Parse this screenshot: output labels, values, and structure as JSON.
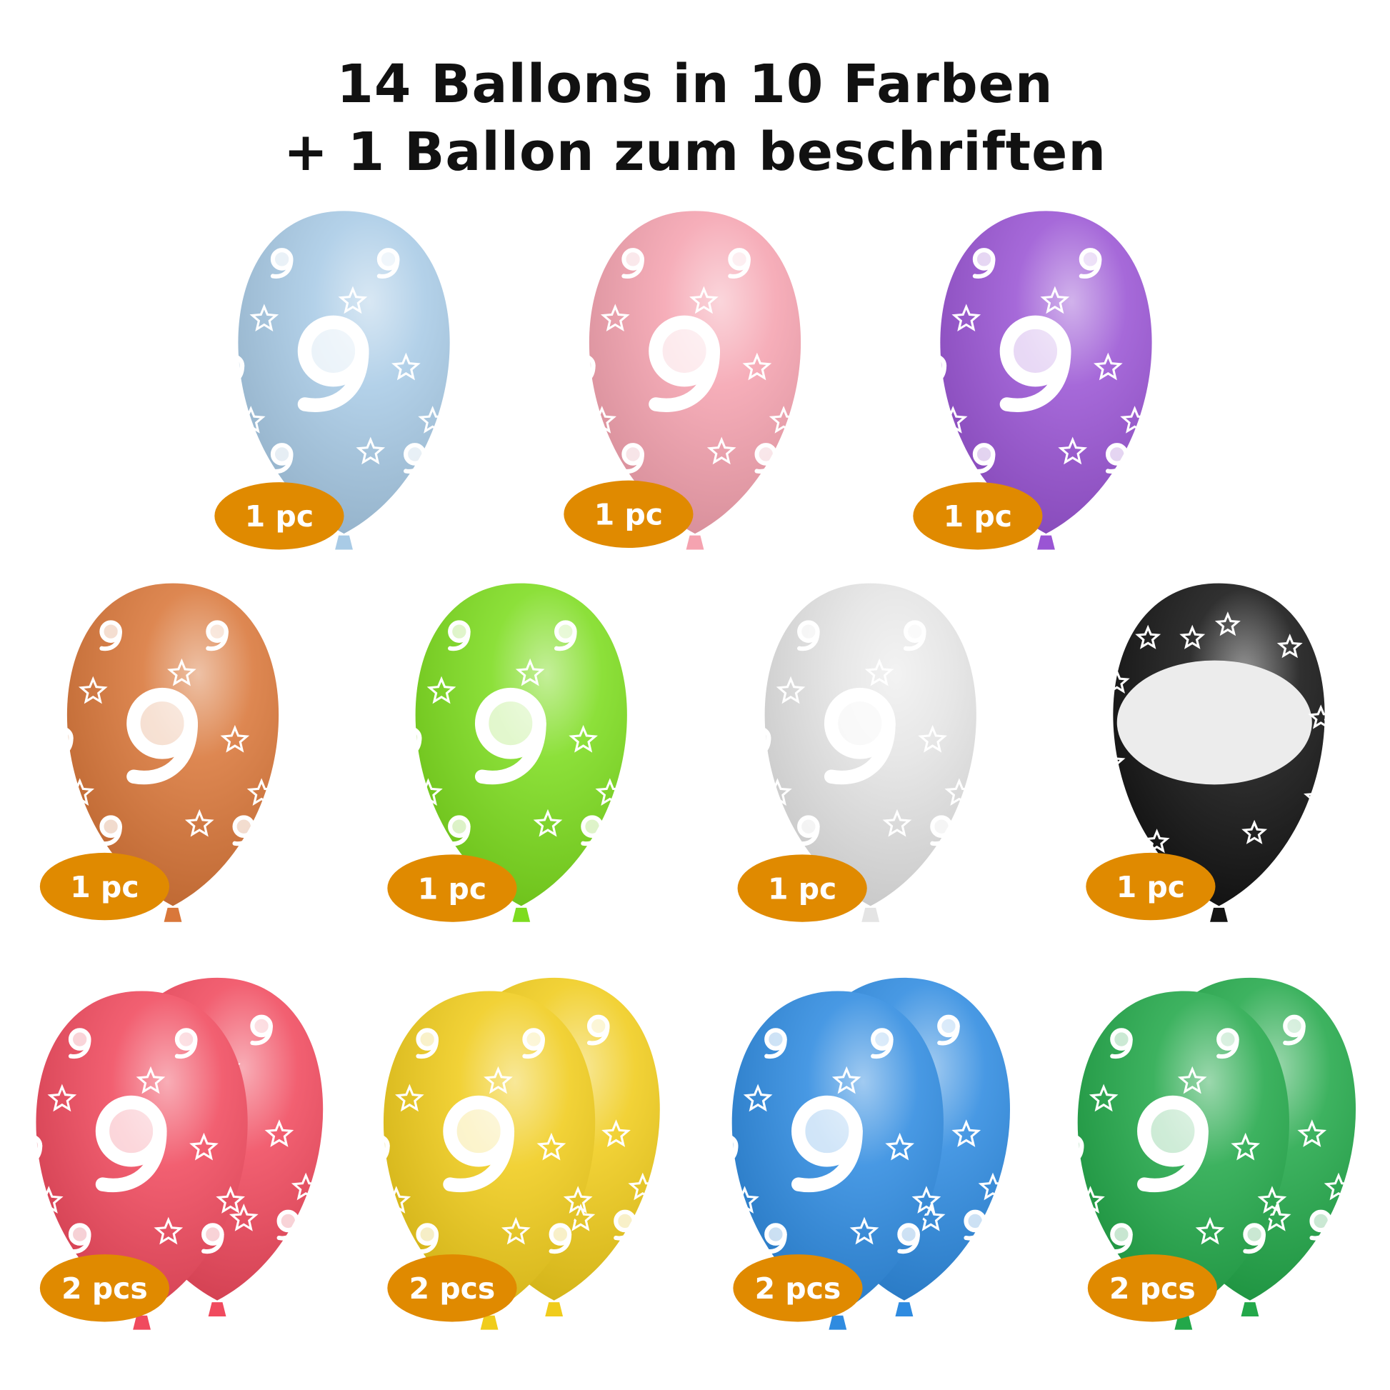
{
  "header": {
    "line1": "14 Ballons in 10 Farben",
    "line2": "+ 1 Ballon zum beschriften"
  },
  "badge_color": "#e08a00",
  "balloons": [
    {
      "color": "#a9cbe6",
      "label": "1 pc",
      "count": 1,
      "pattern": "9"
    },
    {
      "color": "#f5a3b0",
      "label": "1 pc",
      "count": 1,
      "pattern": "9"
    },
    {
      "color": "#9a55d4",
      "label": "1 pc",
      "count": 1,
      "pattern": "9"
    },
    {
      "color": "#d9773a",
      "label": "1 pc",
      "count": 1,
      "pattern": "9"
    },
    {
      "color": "#7ddc1f",
      "label": "1 pc",
      "count": 1,
      "pattern": "9"
    },
    {
      "color": "#e4e4e4",
      "label": "1 pc",
      "count": 1,
      "pattern": "9"
    },
    {
      "color": "#141414",
      "label": "1 pc",
      "count": 1,
      "pattern": "blank label"
    },
    {
      "color": "#f04a5e",
      "label": "2 pcs",
      "count": 2,
      "pattern": "9"
    },
    {
      "color": "#f0cc1c",
      "label": "2 pcs",
      "count": 2,
      "pattern": "9"
    },
    {
      "color": "#2f8be0",
      "label": "2 pcs",
      "count": 2,
      "pattern": "9"
    },
    {
      "color": "#23a84a",
      "label": "2 pcs",
      "count": 2,
      "pattern": "9"
    }
  ]
}
